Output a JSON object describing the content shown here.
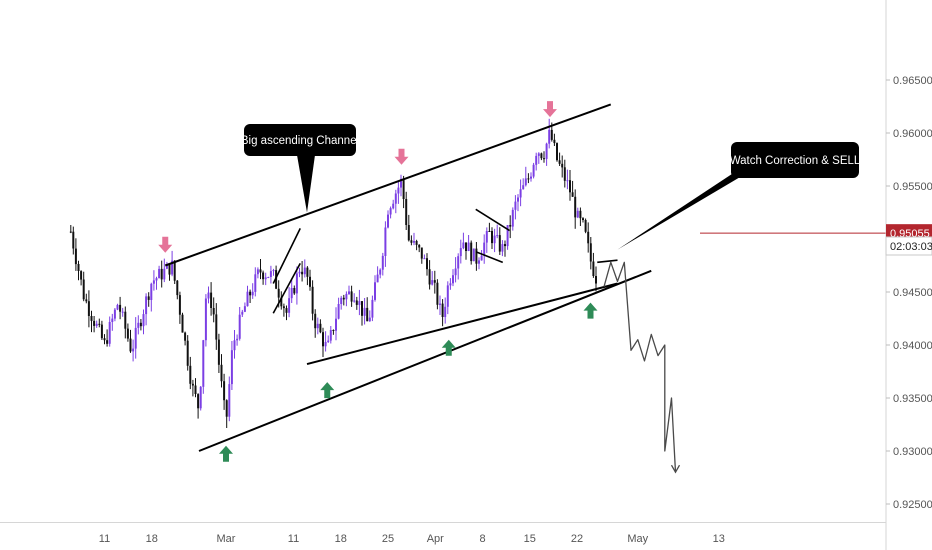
{
  "chart_data": {
    "type": "candlestick",
    "title": "",
    "xlabel": "",
    "ylabel": "",
    "ylim": [
      0.9205,
      0.9705
    ],
    "grid": false,
    "y_ticks": [
      "0.96500",
      "0.96000",
      "0.95500",
      "0.95000",
      "0.94500",
      "0.94000",
      "0.93500",
      "0.93000",
      "0.92500"
    ],
    "y_tick_values": [
      0.965,
      0.96,
      0.955,
      0.95,
      0.945,
      0.94,
      0.935,
      0.93,
      0.925
    ],
    "x_ticks": [
      "11",
      "18",
      "Mar",
      "11",
      "18",
      "25",
      "Apr",
      "8",
      "15",
      "22",
      "May",
      "13"
    ],
    "x_tick_dates": [
      "2019-02-11",
      "2019-02-18",
      "2019-03-01",
      "2019-03-11",
      "2019-03-18",
      "2019-03-25",
      "2019-04-01",
      "2019-04-08",
      "2019-04-15",
      "2019-04-22",
      "2019-05-01",
      "2019-05-13"
    ],
    "current_price": {
      "label": "0.95055",
      "value": 0.95055,
      "color": "#b3262e"
    },
    "countdown": {
      "label": "02:03:03"
    },
    "price_path": [
      [
        "2019-02-06",
        0.9507
      ],
      [
        "2019-02-08",
        0.9445
      ],
      [
        "2019-02-11",
        0.94
      ],
      [
        "2019-02-13",
        0.944
      ],
      [
        "2019-02-15",
        0.9395
      ],
      [
        "2019-02-18",
        0.946
      ],
      [
        "2019-02-20",
        0.947
      ],
      [
        "2019-02-21",
        0.9475
      ],
      [
        "2019-02-22",
        0.944
      ],
      [
        "2019-02-24",
        0.936
      ],
      [
        "2019-02-25",
        0.934
      ],
      [
        "2019-02-26",
        0.9445
      ],
      [
        "2019-02-27",
        0.944
      ],
      [
        "2019-02-28",
        0.938
      ],
      [
        "2019-03-01",
        0.9325
      ],
      [
        "2019-03-02",
        0.94
      ],
      [
        "2019-03-04",
        0.944
      ],
      [
        "2019-03-06",
        0.947
      ],
      [
        "2019-03-08",
        0.9465
      ],
      [
        "2019-03-10",
        0.943
      ],
      [
        "2019-03-12",
        0.9475
      ],
      [
        "2019-03-13",
        0.9465
      ],
      [
        "2019-03-14",
        0.9425
      ],
      [
        "2019-03-16",
        0.9395
      ],
      [
        "2019-03-18",
        0.9445
      ],
      [
        "2019-03-20",
        0.945
      ],
      [
        "2019-03-22",
        0.942
      ],
      [
        "2019-03-24",
        0.948
      ],
      [
        "2019-03-25",
        0.953
      ],
      [
        "2019-03-27",
        0.9555
      ],
      [
        "2019-03-28",
        0.95
      ],
      [
        "2019-03-30",
        0.9485
      ],
      [
        "2019-04-01",
        0.945
      ],
      [
        "2019-04-02",
        0.9425
      ],
      [
        "2019-04-03",
        0.946
      ],
      [
        "2019-04-05",
        0.95
      ],
      [
        "2019-04-07",
        0.948
      ],
      [
        "2019-04-09",
        0.9505
      ],
      [
        "2019-04-11",
        0.949
      ],
      [
        "2019-04-13",
        0.9535
      ],
      [
        "2019-04-15",
        0.956
      ],
      [
        "2019-04-16",
        0.9585
      ],
      [
        "2019-04-17",
        0.958
      ],
      [
        "2019-04-18",
        0.96
      ],
      [
        "2019-04-19",
        0.9575
      ],
      [
        "2019-04-21",
        0.9545
      ],
      [
        "2019-04-22",
        0.952
      ],
      [
        "2019-04-23",
        0.951
      ],
      [
        "2019-04-24",
        0.948
      ],
      [
        "2019-04-25",
        0.946
      ]
    ],
    "channel_lines": [
      {
        "name": "upper-channel",
        "points": [
          [
            "2019-02-20",
            0.9475
          ],
          [
            "2019-04-27",
            0.9627
          ]
        ]
      },
      {
        "name": "lower-channel",
        "points": [
          [
            "2019-02-25",
            0.93
          ],
          [
            "2019-05-03",
            0.947
          ]
        ]
      },
      {
        "name": "inner-support",
        "points": [
          [
            "2019-03-13",
            0.9382
          ],
          [
            "2019-04-28",
            0.9458
          ]
        ]
      }
    ],
    "pattern_lines": [
      {
        "points": [
          [
            "2019-03-08",
            0.9458
          ],
          [
            "2019-03-12",
            0.951
          ]
        ]
      },
      {
        "points": [
          [
            "2019-03-08",
            0.943
          ],
          [
            "2019-03-12",
            0.9477
          ]
        ]
      },
      {
        "points": [
          [
            "2019-04-07",
            0.9528
          ],
          [
            "2019-04-12",
            0.9508
          ]
        ]
      },
      {
        "points": [
          [
            "2019-04-07",
            0.9488
          ],
          [
            "2019-04-11",
            0.9478
          ]
        ]
      },
      {
        "points": [
          [
            "2019-04-25",
            0.9478
          ],
          [
            "2019-04-28",
            0.948
          ]
        ]
      }
    ],
    "projection_path": [
      [
        "2019-04-26",
        0.9455
      ],
      [
        "2019-04-27",
        0.9478
      ],
      [
        "2019-04-28",
        0.946
      ],
      [
        "2019-04-29",
        0.9478
      ],
      [
        "2019-04-30",
        0.9395
      ],
      [
        "2019-05-01",
        0.9405
      ],
      [
        "2019-05-02",
        0.9385
      ],
      [
        "2019-05-03",
        0.941
      ],
      [
        "2019-05-04",
        0.939
      ],
      [
        "2019-05-05",
        0.94
      ],
      [
        "2019-05-05",
        0.936
      ],
      [
        "2019-05-05",
        0.93
      ],
      [
        "2019-05-06",
        0.935
      ],
      [
        "2019-05-06",
        0.928
      ]
    ],
    "down_arrows": [
      [
        "2019-02-20",
        0.9487
      ],
      [
        "2019-03-27",
        0.957
      ],
      [
        "2019-04-18",
        0.9615
      ]
    ],
    "up_arrows": [
      [
        "2019-03-01",
        0.9305
      ],
      [
        "2019-03-16",
        0.9365
      ],
      [
        "2019-04-03",
        0.9405
      ],
      [
        "2019-04-24",
        0.944
      ]
    ],
    "annotations": [
      {
        "text": "Big ascending Channel",
        "anchor": [
          "2019-03-13",
          0.9525
        ]
      },
      {
        "text": "Watch Correction & SELL",
        "anchor": [
          "2019-04-28",
          0.949
        ]
      }
    ],
    "colors": {
      "bull": "#7b3fe4",
      "bear": "#111111",
      "up_arrow": "#2e8b57",
      "down_arrow": "#e57398",
      "line": "#000000"
    }
  }
}
